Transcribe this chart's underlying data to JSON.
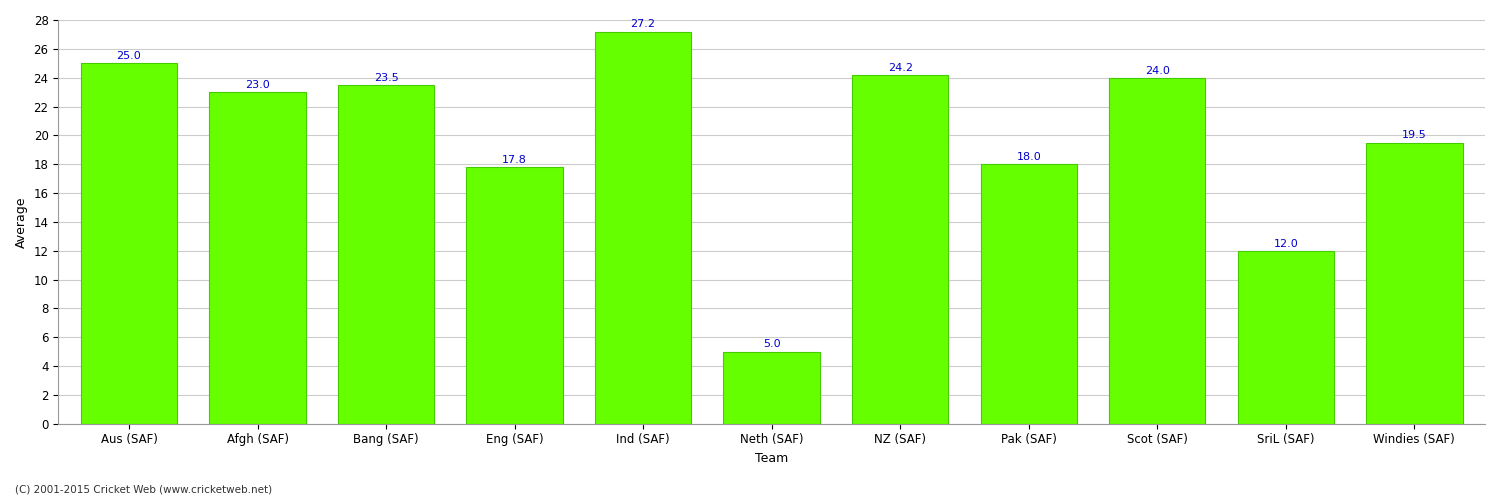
{
  "categories": [
    "Aus (SAF)",
    "Afgh (SAF)",
    "Bang (SAF)",
    "Eng (SAF)",
    "Ind (SAF)",
    "Neth (SAF)",
    "NZ (SAF)",
    "Pak (SAF)",
    "Scot (SAF)",
    "SriL (SAF)",
    "Windies (SAF)"
  ],
  "values": [
    25.0,
    23.0,
    23.5,
    17.8,
    27.2,
    5.0,
    24.2,
    18.0,
    24.0,
    12.0,
    19.5
  ],
  "bar_color": "#66ff00",
  "bar_edge_color": "#44cc00",
  "label_color": "#0000cc",
  "xlabel": "Team",
  "ylabel": "Average",
  "ylim": [
    0,
    28
  ],
  "yticks": [
    0,
    2,
    4,
    6,
    8,
    10,
    12,
    14,
    16,
    18,
    20,
    22,
    24,
    26,
    28
  ],
  "axis_label_fontsize": 9,
  "tick_fontsize": 8.5,
  "value_label_fontsize": 8,
  "footer_text": "(C) 2001-2015 Cricket Web (www.cricketweb.net)",
  "background_color": "#ffffff",
  "grid_color": "#cccccc"
}
